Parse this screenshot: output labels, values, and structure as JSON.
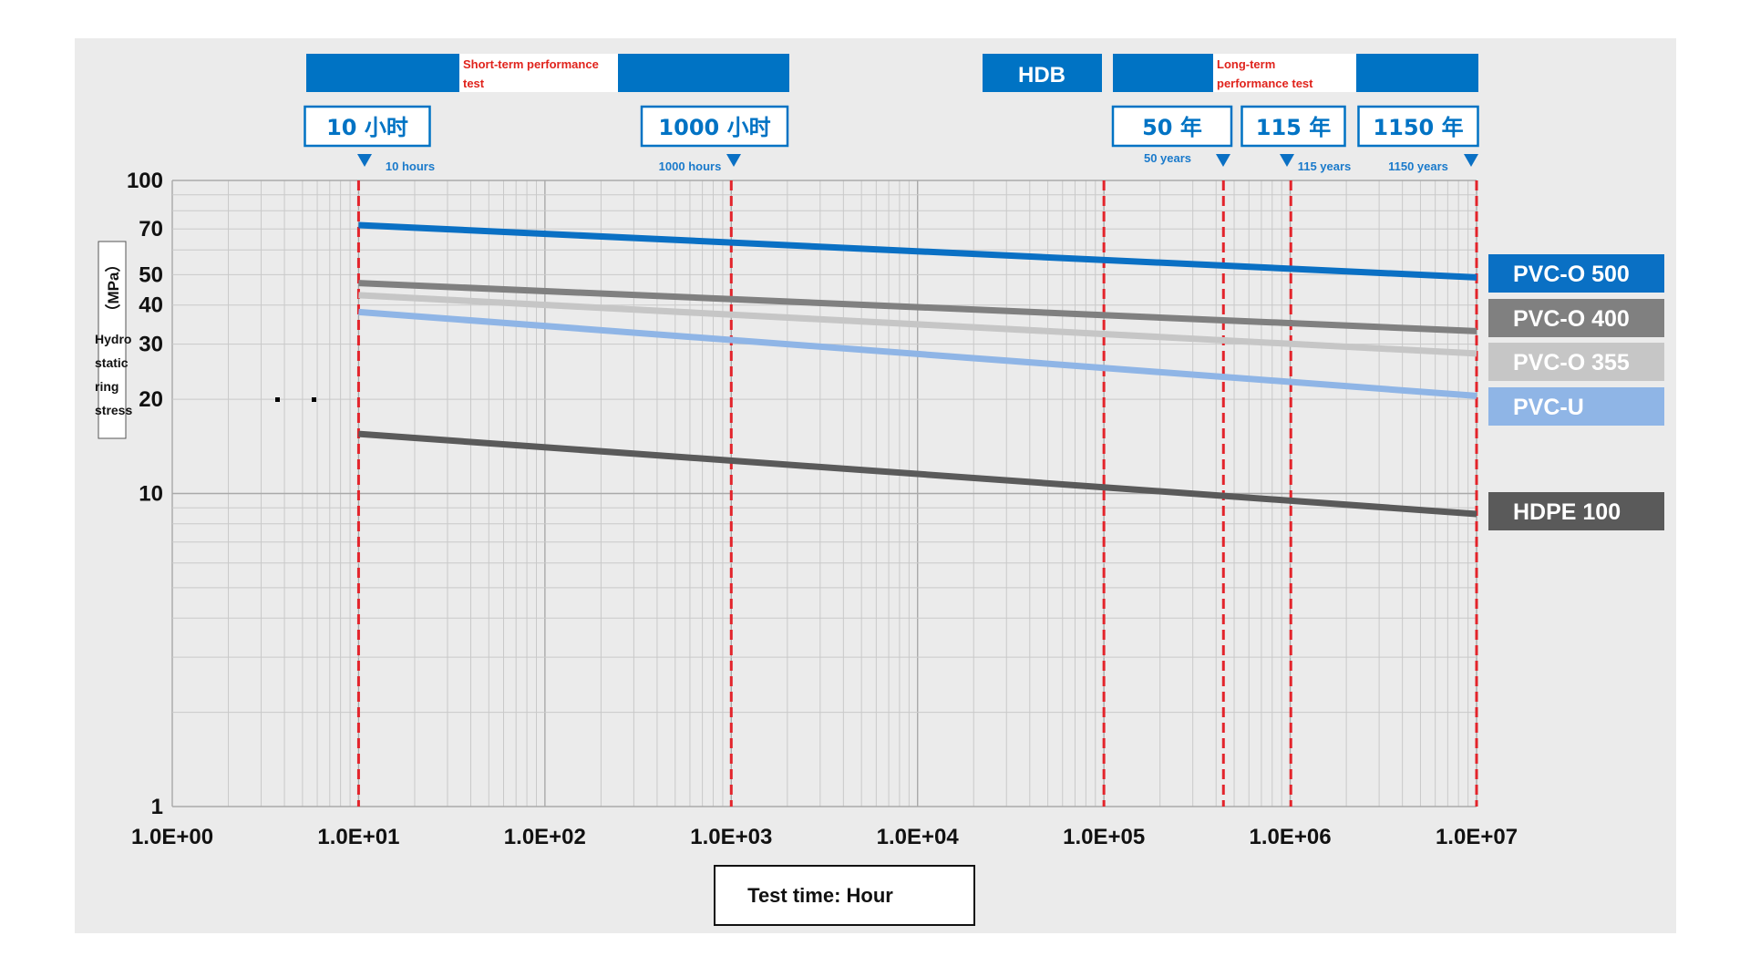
{
  "header": {
    "short_term_label": "Short-term performance test",
    "hdb_label": "HDB",
    "long_term_label": "Long-term performance test"
  },
  "callouts": [
    {
      "label": "10 小时",
      "note": "10 hours",
      "x": 10
    },
    {
      "label": "1000 小时",
      "note": "1000 hours",
      "x": 1000
    },
    {
      "label": "50 年",
      "note": "50 years",
      "x": 438000
    },
    {
      "label": "115 年",
      "note": "115 years",
      "x": 1007400
    },
    {
      "label": "1150 年",
      "note": "1150 years",
      "x": 10074000
    }
  ],
  "x_axis_title": "Test time: Hour",
  "y_axis_title": {
    "unit": "（MPa）",
    "words": [
      "Hydro",
      "static",
      "ring",
      "stress"
    ]
  },
  "colors": {
    "pvc_o_500": "#0a70c4",
    "pvc_o_400": "#808080",
    "pvc_o_355": "#c6c6c6",
    "pvc_u": "#8fb5e6",
    "hdpe_100": "#5a5a5a",
    "reference_line": "#e3242b",
    "header_bar": "#0073c4"
  },
  "chart_data": {
    "type": "line",
    "x_scale": "log",
    "y_scale": "log",
    "xlim": [
      1,
      10000000
    ],
    "ylim": [
      1,
      100
    ],
    "grid": true,
    "legend_position": "right",
    "x_ticks": [
      "1.0E+00",
      "1.0E+01",
      "1.0E+02",
      "1.0E+03",
      "1.0E+04",
      "1.0E+05",
      "1.0E+06",
      "1.0E+07"
    ],
    "y_ticks": [
      "1",
      "10",
      "20",
      "30",
      "40",
      "50",
      "70",
      "100"
    ],
    "y_tick_values": [
      1,
      10,
      20,
      30,
      40,
      50,
      70,
      100
    ],
    "vertical_reference_lines": [
      10,
      1000,
      100000,
      438000,
      1007400,
      10000000
    ],
    "series": [
      {
        "name": "PVC-O 500",
        "x": [
          10,
          10000000
        ],
        "y": [
          72,
          49
        ]
      },
      {
        "name": "PVC-O 400",
        "x": [
          10,
          10000000
        ],
        "y": [
          47,
          33
        ]
      },
      {
        "name": "PVC-O 355",
        "x": [
          10,
          10000000
        ],
        "y": [
          43,
          28
        ]
      },
      {
        "name": "PVC-U",
        "x": [
          10,
          10000000
        ],
        "y": [
          38,
          20.5
        ]
      },
      {
        "name": "HDPE 100",
        "x": [
          10,
          10000000
        ],
        "y": [
          15.5,
          8.6
        ]
      }
    ]
  }
}
